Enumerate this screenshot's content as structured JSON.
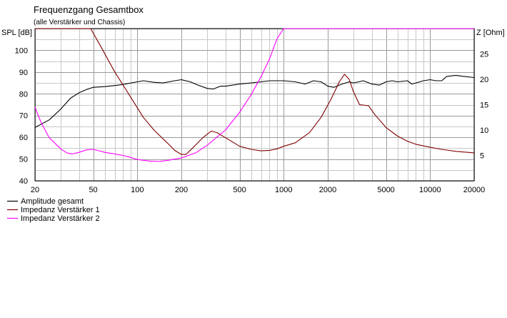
{
  "chart_data": {
    "type": "line",
    "title": "Frequenzgang Gesamtbox",
    "subtitle": "(alle Verstärker und Chassis)",
    "ylabel": "SPL [dB]",
    "y2label": "Z [Ohm]",
    "x_scale": "log",
    "xlim": [
      20,
      20000
    ],
    "ylim": [
      40,
      110
    ],
    "y2lim": [
      0,
      30
    ],
    "grid": true,
    "legend_position": "bottom-left",
    "x_ticks": [
      "20",
      "50",
      "100",
      "200",
      "500",
      "1000",
      "2000",
      "5000",
      "10000",
      "20000"
    ],
    "y_ticks": [
      "100",
      "90",
      "80",
      "70",
      "60",
      "50",
      "40"
    ],
    "y2_ticks": [
      "25",
      "20",
      "15",
      "10",
      "5"
    ],
    "series": [
      {
        "name": "Amplitude gesamt",
        "axis": "left",
        "color": "#000000",
        "points": [
          [
            20,
            64.5
          ],
          [
            25,
            68
          ],
          [
            30,
            73
          ],
          [
            35,
            78
          ],
          [
            40,
            80.5
          ],
          [
            45,
            82
          ],
          [
            50,
            83
          ],
          [
            60,
            83.3
          ],
          [
            70,
            83.8
          ],
          [
            80,
            84.3
          ],
          [
            100,
            85.5
          ],
          [
            110,
            86
          ],
          [
            130,
            85.3
          ],
          [
            150,
            85
          ],
          [
            180,
            86
          ],
          [
            200,
            86.5
          ],
          [
            230,
            85.5
          ],
          [
            260,
            84
          ],
          [
            300,
            82.5
          ],
          [
            330,
            82.2
          ],
          [
            370,
            83.5
          ],
          [
            400,
            83.5
          ],
          [
            500,
            84.5
          ],
          [
            600,
            85
          ],
          [
            700,
            85.5
          ],
          [
            800,
            86
          ],
          [
            1000,
            86
          ],
          [
            1200,
            85.5
          ],
          [
            1400,
            84.5
          ],
          [
            1600,
            86
          ],
          [
            1800,
            85.5
          ],
          [
            2000,
            83.5
          ],
          [
            2200,
            83
          ],
          [
            2500,
            84.5
          ],
          [
            2800,
            85.5
          ],
          [
            3000,
            85
          ],
          [
            3500,
            86
          ],
          [
            4000,
            84.5
          ],
          [
            4500,
            84
          ],
          [
            5000,
            85.5
          ],
          [
            5500,
            86
          ],
          [
            6000,
            85.5
          ],
          [
            7000,
            86
          ],
          [
            7500,
            84.5
          ],
          [
            8000,
            85
          ],
          [
            9000,
            86
          ],
          [
            10000,
            86.5
          ],
          [
            11000,
            86
          ],
          [
            12000,
            86
          ],
          [
            13000,
            88
          ],
          [
            15000,
            88.5
          ],
          [
            17000,
            88
          ],
          [
            20000,
            87.5
          ]
        ]
      },
      {
        "name": "Impedanz Verstärker 1",
        "axis": "right",
        "color": "#800000",
        "points": [
          [
            20,
            30
          ],
          [
            48,
            30
          ],
          [
            55,
            27
          ],
          [
            70,
            21.5
          ],
          [
            90,
            16.5
          ],
          [
            110,
            12.5
          ],
          [
            130,
            10
          ],
          [
            160,
            7.5
          ],
          [
            180,
            6
          ],
          [
            200,
            5.2
          ],
          [
            215,
            5.2
          ],
          [
            240,
            6.5
          ],
          [
            280,
            8.5
          ],
          [
            320,
            9.8
          ],
          [
            350,
            9.5
          ],
          [
            400,
            8.5
          ],
          [
            500,
            6.8
          ],
          [
            600,
            6.2
          ],
          [
            700,
            5.9
          ],
          [
            800,
            6
          ],
          [
            900,
            6.3
          ],
          [
            1000,
            6.8
          ],
          [
            1200,
            7.5
          ],
          [
            1500,
            9.5
          ],
          [
            1800,
            12.5
          ],
          [
            2100,
            16
          ],
          [
            2400,
            19.5
          ],
          [
            2600,
            21
          ],
          [
            2800,
            20
          ],
          [
            3000,
            17.5
          ],
          [
            3300,
            15
          ],
          [
            3800,
            14.8
          ],
          [
            4200,
            13
          ],
          [
            5000,
            10.5
          ],
          [
            6000,
            8.8
          ],
          [
            7000,
            7.8
          ],
          [
            8000,
            7.2
          ],
          [
            10000,
            6.6
          ],
          [
            12000,
            6.2
          ],
          [
            15000,
            5.8
          ],
          [
            20000,
            5.5
          ]
        ]
      },
      {
        "name": "Impedanz Verstärker 2",
        "axis": "right",
        "color": "#ff00ff",
        "points": [
          [
            20,
            14.5
          ],
          [
            22,
            11.5
          ],
          [
            25,
            8.5
          ],
          [
            30,
            6.3
          ],
          [
            33,
            5.5
          ],
          [
            36,
            5.3
          ],
          [
            40,
            5.6
          ],
          [
            45,
            6.1
          ],
          [
            50,
            6.2
          ],
          [
            55,
            5.9
          ],
          [
            60,
            5.6
          ],
          [
            70,
            5.3
          ],
          [
            80,
            5
          ],
          [
            90,
            4.6
          ],
          [
            100,
            4.2
          ],
          [
            120,
            3.9
          ],
          [
            140,
            3.8
          ],
          [
            160,
            4
          ],
          [
            200,
            4.5
          ],
          [
            250,
            5.5
          ],
          [
            300,
            7
          ],
          [
            400,
            10
          ],
          [
            500,
            13.5
          ],
          [
            600,
            17
          ],
          [
            700,
            20.5
          ],
          [
            800,
            24
          ],
          [
            900,
            28
          ],
          [
            1000,
            30
          ],
          [
            20000,
            30
          ]
        ]
      }
    ]
  }
}
